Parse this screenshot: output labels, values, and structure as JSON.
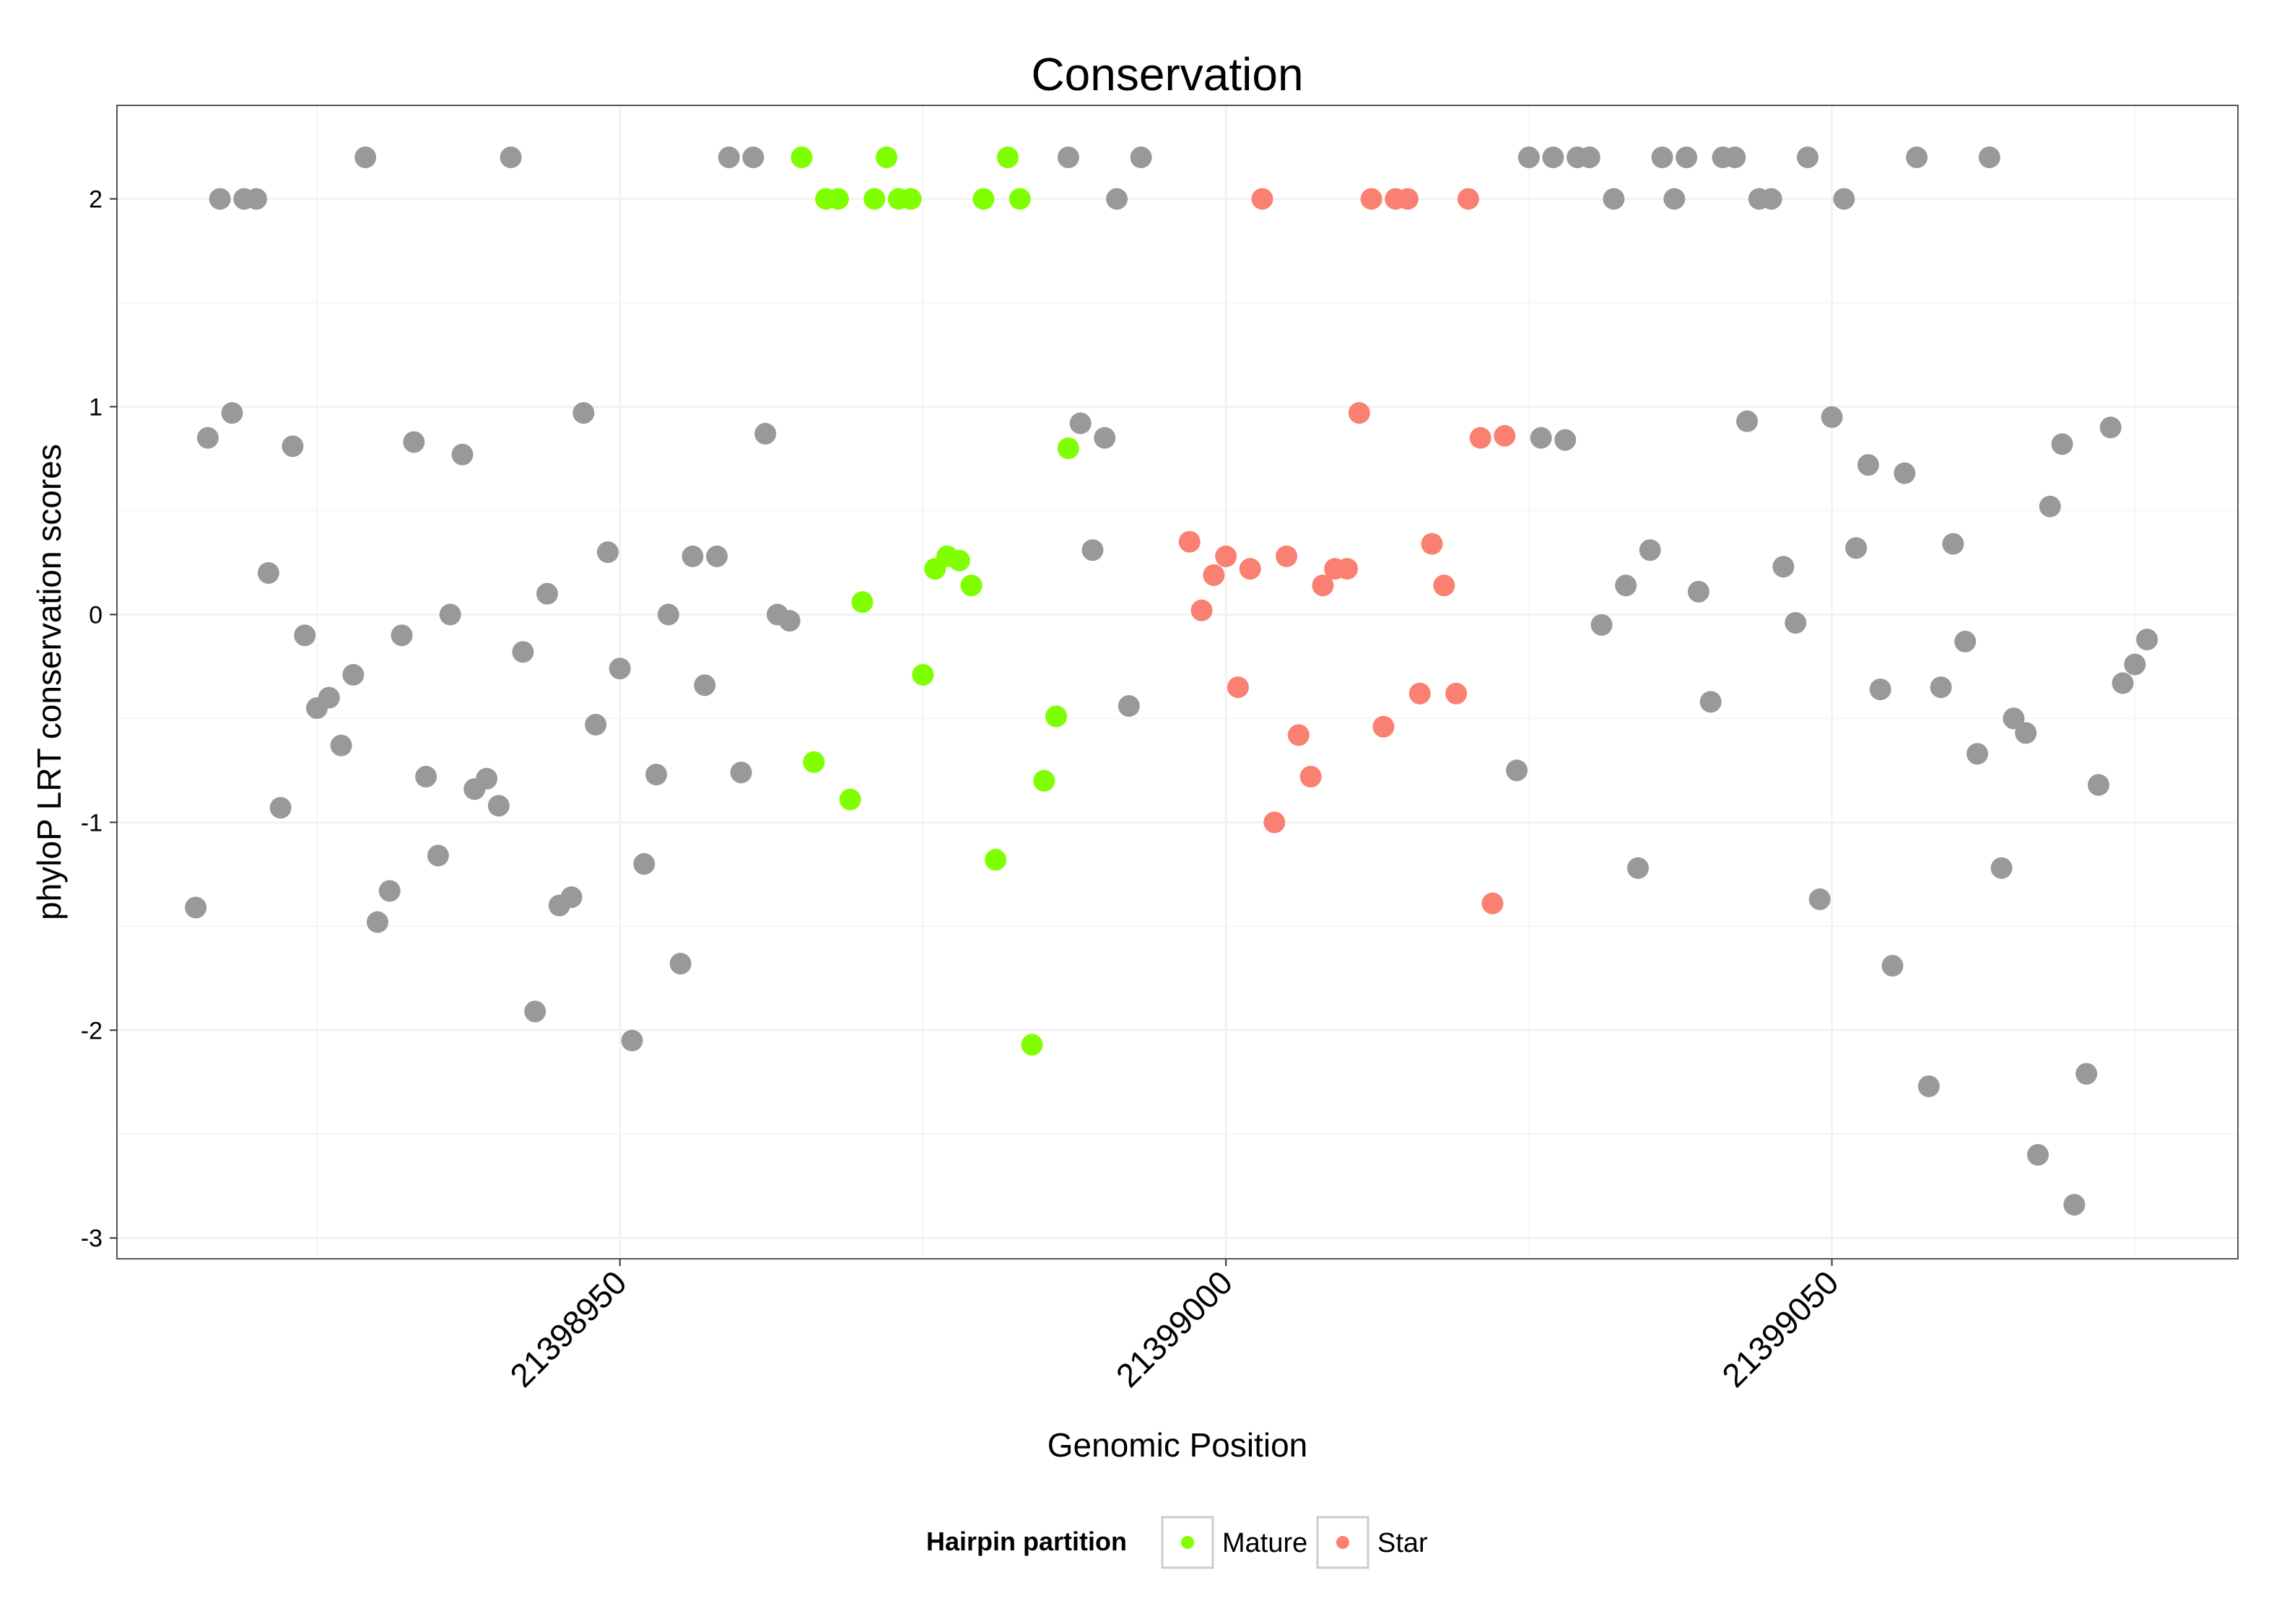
{
  "chart_data": {
    "type": "scatter",
    "title": "Conservation",
    "xlabel": "Genomic Position",
    "ylabel": "phyloP LRT conservation scores",
    "xlim": [
      21398908.5,
      21399083.5
    ],
    "ylim": [
      -3.1,
      2.45
    ],
    "x_ticks": [
      21398950,
      21399000,
      21399050
    ],
    "x_tick_labels": [
      "21398950",
      "21399000",
      "21399050"
    ],
    "y_ticks": [
      -3,
      -2,
      -1,
      0,
      1,
      2
    ],
    "y_tick_labels": [
      "-3",
      "-2",
      "-1",
      "0",
      "1",
      "2"
    ],
    "grid": true,
    "legend": {
      "title": "Hairpin partition",
      "position": "bottom",
      "entries": [
        "Mature",
        "Star"
      ]
    },
    "colors": {
      "Other": "#999999",
      "Mature": "#7FFF00",
      "Star": "#FA8072",
      "panel_border": "#555555",
      "gridline": "#F2F2F2"
    },
    "series": [
      {
        "group": "Other",
        "points": [
          [
            21398915,
            -1.41
          ],
          [
            21398916,
            0.85
          ],
          [
            21398917,
            2.0
          ],
          [
            21398918,
            0.97
          ],
          [
            21398919,
            2.0
          ],
          [
            21398920,
            2.0
          ],
          [
            21398921,
            0.2
          ],
          [
            21398922,
            -0.93
          ],
          [
            21398923,
            0.81
          ],
          [
            21398924,
            -0.1
          ],
          [
            21398925,
            -0.45
          ],
          [
            21398926,
            -0.4
          ],
          [
            21398927,
            -0.63
          ],
          [
            21398928,
            -0.29
          ],
          [
            21398929,
            2.2
          ],
          [
            21398930,
            -1.48
          ],
          [
            21398931,
            -1.33
          ],
          [
            21398932,
            -0.1
          ],
          [
            21398933,
            0.83
          ],
          [
            21398934,
            -0.78
          ],
          [
            21398935,
            -1.16
          ],
          [
            21398936,
            0.0
          ],
          [
            21398937,
            0.77
          ],
          [
            21398938,
            -0.84
          ],
          [
            21398939,
            -0.79
          ],
          [
            21398940,
            -0.92
          ],
          [
            21398941,
            2.2
          ],
          [
            21398942,
            -0.18
          ],
          [
            21398943,
            -1.91
          ],
          [
            21398944,
            0.1
          ],
          [
            21398945,
            -1.4
          ],
          [
            21398946,
            -1.36
          ],
          [
            21398947,
            0.97
          ],
          [
            21398948,
            -0.53
          ],
          [
            21398949,
            0.3
          ],
          [
            21398950,
            -0.26
          ],
          [
            21398951,
            -2.05
          ],
          [
            21398952,
            -1.2
          ],
          [
            21398953,
            -0.77
          ],
          [
            21398954,
            0.0
          ],
          [
            21398955,
            -1.68
          ],
          [
            21398956,
            0.28
          ],
          [
            21398957,
            -0.34
          ],
          [
            21398958,
            0.28
          ],
          [
            21398959,
            2.2
          ],
          [
            21398960,
            -0.76
          ],
          [
            21398961,
            2.2
          ],
          [
            21398962,
            0.87
          ],
          [
            21398963,
            0.0
          ],
          [
            21398964,
            -0.03
          ],
          [
            21398987,
            2.2
          ],
          [
            21398988,
            0.92
          ],
          [
            21398989,
            0.31
          ],
          [
            21398990,
            0.85
          ],
          [
            21398991,
            2.0
          ],
          [
            21398992,
            -0.44
          ],
          [
            21398993,
            2.2
          ],
          [
            21399024,
            -0.75
          ],
          [
            21399025,
            2.2
          ],
          [
            21399026,
            0.85
          ],
          [
            21399027,
            2.2
          ],
          [
            21399028,
            0.84
          ],
          [
            21399029,
            2.2
          ],
          [
            21399030,
            2.2
          ],
          [
            21399031,
            -0.05
          ],
          [
            21399032,
            2.0
          ],
          [
            21399033,
            0.14
          ],
          [
            21399034,
            -1.22
          ],
          [
            21399035,
            0.31
          ],
          [
            21399036,
            2.2
          ],
          [
            21399037,
            2.0
          ],
          [
            21399038,
            2.2
          ],
          [
            21399039,
            0.11
          ],
          [
            21399040,
            -0.42
          ],
          [
            21399041,
            2.2
          ],
          [
            21399042,
            2.2
          ],
          [
            21399043,
            0.93
          ],
          [
            21399044,
            2.0
          ],
          [
            21399045,
            2.0
          ],
          [
            21399046,
            0.23
          ],
          [
            21399047,
            -0.04
          ],
          [
            21399048,
            2.2
          ],
          [
            21399049,
            -1.37
          ],
          [
            21399050,
            0.95
          ],
          [
            21399051,
            2.0
          ],
          [
            21399052,
            0.32
          ],
          [
            21399053,
            0.72
          ],
          [
            21399054,
            -0.36
          ],
          [
            21399055,
            -1.69
          ],
          [
            21399056,
            0.68
          ],
          [
            21399057,
            2.2
          ],
          [
            21399058,
            -2.27
          ],
          [
            21399059,
            -0.35
          ],
          [
            21399060,
            0.34
          ],
          [
            21399061,
            -0.13
          ],
          [
            21399062,
            -0.67
          ],
          [
            21399063,
            2.2
          ],
          [
            21399064,
            -1.22
          ],
          [
            21399065,
            -0.5
          ],
          [
            21399066,
            -0.57
          ],
          [
            21399067,
            -2.6
          ],
          [
            21399068,
            0.52
          ],
          [
            21399069,
            0.82
          ],
          [
            21399070,
            -2.84
          ],
          [
            21399071,
            -2.21
          ],
          [
            21399072,
            -0.82
          ],
          [
            21399073,
            0.9
          ],
          [
            21399074,
            -0.33
          ],
          [
            21399075,
            -0.24
          ],
          [
            21399076,
            -0.12
          ]
        ]
      },
      {
        "group": "Mature",
        "name": "Mature",
        "points": [
          [
            21398965,
            2.2
          ],
          [
            21398966,
            -0.71
          ],
          [
            21398967,
            2.0
          ],
          [
            21398968,
            2.0
          ],
          [
            21398969,
            -0.89
          ],
          [
            21398970,
            0.06
          ],
          [
            21398971,
            2.0
          ],
          [
            21398972,
            2.2
          ],
          [
            21398973,
            2.0
          ],
          [
            21398974,
            2.0
          ],
          [
            21398975,
            -0.29
          ],
          [
            21398976,
            0.22
          ],
          [
            21398977,
            0.28
          ],
          [
            21398978,
            0.26
          ],
          [
            21398979,
            0.14
          ],
          [
            21398980,
            2.0
          ],
          [
            21398981,
            -1.18
          ],
          [
            21398982,
            2.2
          ],
          [
            21398983,
            2.0
          ],
          [
            21398984,
            -2.07
          ],
          [
            21398985,
            -0.8
          ],
          [
            21398986,
            -0.49
          ],
          [
            21398987,
            0.8
          ]
        ]
      },
      {
        "group": "Star",
        "name": "Star",
        "points": [
          [
            21398997,
            0.35
          ],
          [
            21398998,
            0.02
          ],
          [
            21398999,
            0.19
          ],
          [
            21399000,
            0.28
          ],
          [
            21399001,
            -0.35
          ],
          [
            21399002,
            0.22
          ],
          [
            21399003,
            2.0
          ],
          [
            21399004,
            -1.0
          ],
          [
            21399005,
            0.28
          ],
          [
            21399006,
            -0.58
          ],
          [
            21399007,
            -0.78
          ],
          [
            21399008,
            0.14
          ],
          [
            21399009,
            0.22
          ],
          [
            21399010,
            0.22
          ],
          [
            21399011,
            0.97
          ],
          [
            21399012,
            2.0
          ],
          [
            21399013,
            -0.54
          ],
          [
            21399014,
            2.0
          ],
          [
            21399015,
            2.0
          ],
          [
            21399016,
            -0.38
          ],
          [
            21399017,
            0.34
          ],
          [
            21399018,
            0.14
          ],
          [
            21399019,
            -0.38
          ],
          [
            21399020,
            2.0
          ],
          [
            21399021,
            0.85
          ],
          [
            21399022,
            -1.39
          ],
          [
            21399023,
            0.86
          ]
        ]
      }
    ]
  }
}
